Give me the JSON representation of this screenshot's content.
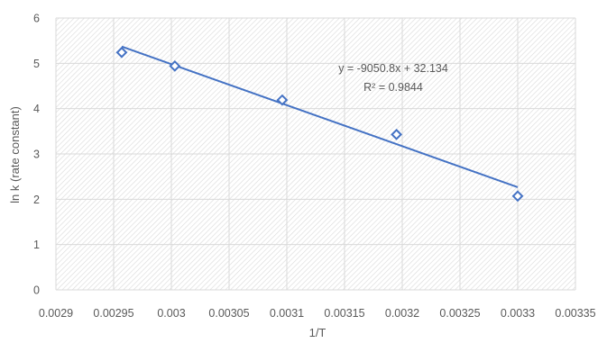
{
  "chart_data": {
    "type": "scatter",
    "xlabel": "1/T",
    "ylabel": "ln k (rate constant)",
    "xlim": [
      0.0029,
      0.00335
    ],
    "ylim": [
      0,
      6
    ],
    "x_ticks": [
      "0.0029",
      "0.00295",
      "0.003",
      "0.00305",
      "0.0031",
      "0.00315",
      "0.0032",
      "0.00325",
      "0.0033",
      "0.00335"
    ],
    "y_ticks": [
      "0",
      "1",
      "2",
      "3",
      "4",
      "5",
      "6"
    ],
    "grid": true,
    "marker": "diamond",
    "series_color": "#4472c4",
    "points": [
      {
        "x": 0.002957,
        "y": 5.24
      },
      {
        "x": 0.003003,
        "y": 4.94
      },
      {
        "x": 0.003096,
        "y": 4.19
      },
      {
        "x": 0.003195,
        "y": 3.43
      },
      {
        "x": 0.0033,
        "y": 2.07
      }
    ],
    "trendline": {
      "type": "linear",
      "slope": -9050.8,
      "intercept": 32.134,
      "x_range": [
        0.002957,
        0.0033
      ],
      "equation": "y = -9050.8x + 32.134",
      "r_squared": "R² = 0.9844"
    }
  }
}
